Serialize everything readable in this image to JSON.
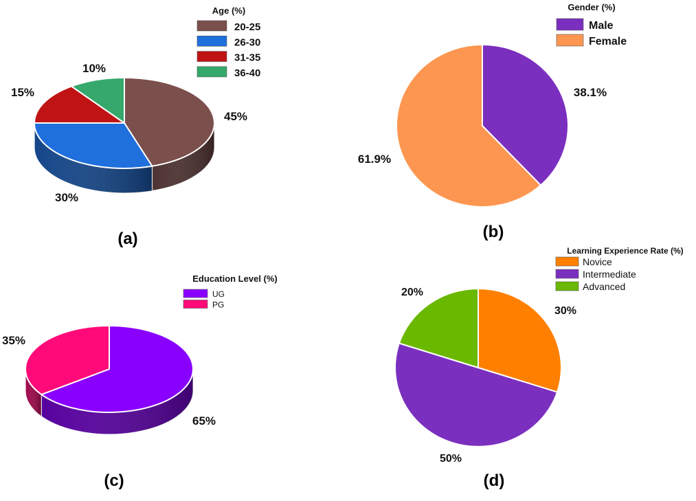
{
  "panels": [
    {
      "caption": "(a)"
    },
    {
      "caption": "(b)"
    },
    {
      "caption": "(c)"
    },
    {
      "caption": "(d)"
    }
  ],
  "chart_data": [
    {
      "type": "pie",
      "style": "3d",
      "legend_title": "Age (%)",
      "legend_placement": "top-right",
      "categories": [
        "20-25",
        "26-30",
        "31-35",
        "36-40"
      ],
      "values": [
        45,
        30,
        15,
        10
      ],
      "labels": [
        "45%",
        "30%",
        "15%",
        "10%"
      ],
      "colors": [
        "#7b4f4c",
        "#1f6fdc",
        "#c01414",
        "#35a86b"
      ]
    },
    {
      "type": "pie",
      "legend_title": "Gender (%)",
      "legend_placement": "top-right",
      "categories": [
        "Male",
        "Female"
      ],
      "values": [
        38.1,
        61.9
      ],
      "labels": [
        "38.1%",
        "61.9%"
      ],
      "colors": [
        "#7b2fbf",
        "#fd9650"
      ]
    },
    {
      "type": "pie",
      "style": "3d",
      "legend_title": "Education Level (%)",
      "legend_placement": "top-right",
      "categories": [
        "UG",
        "PG"
      ],
      "values": [
        65,
        35
      ],
      "labels": [
        "65%",
        "35%"
      ],
      "colors": [
        "#8a00ff",
        "#ff0a78"
      ]
    },
    {
      "type": "pie",
      "legend_title": "Learning Experience Rate (%)",
      "legend_placement": "top-right",
      "categories": [
        "Novice",
        "Intermediate",
        "Advanced"
      ],
      "values": [
        30,
        50,
        20
      ],
      "labels": [
        "30%",
        "50%",
        "20%"
      ],
      "colors": [
        "#ff8000",
        "#7b2fbf",
        "#6ab800"
      ]
    }
  ]
}
